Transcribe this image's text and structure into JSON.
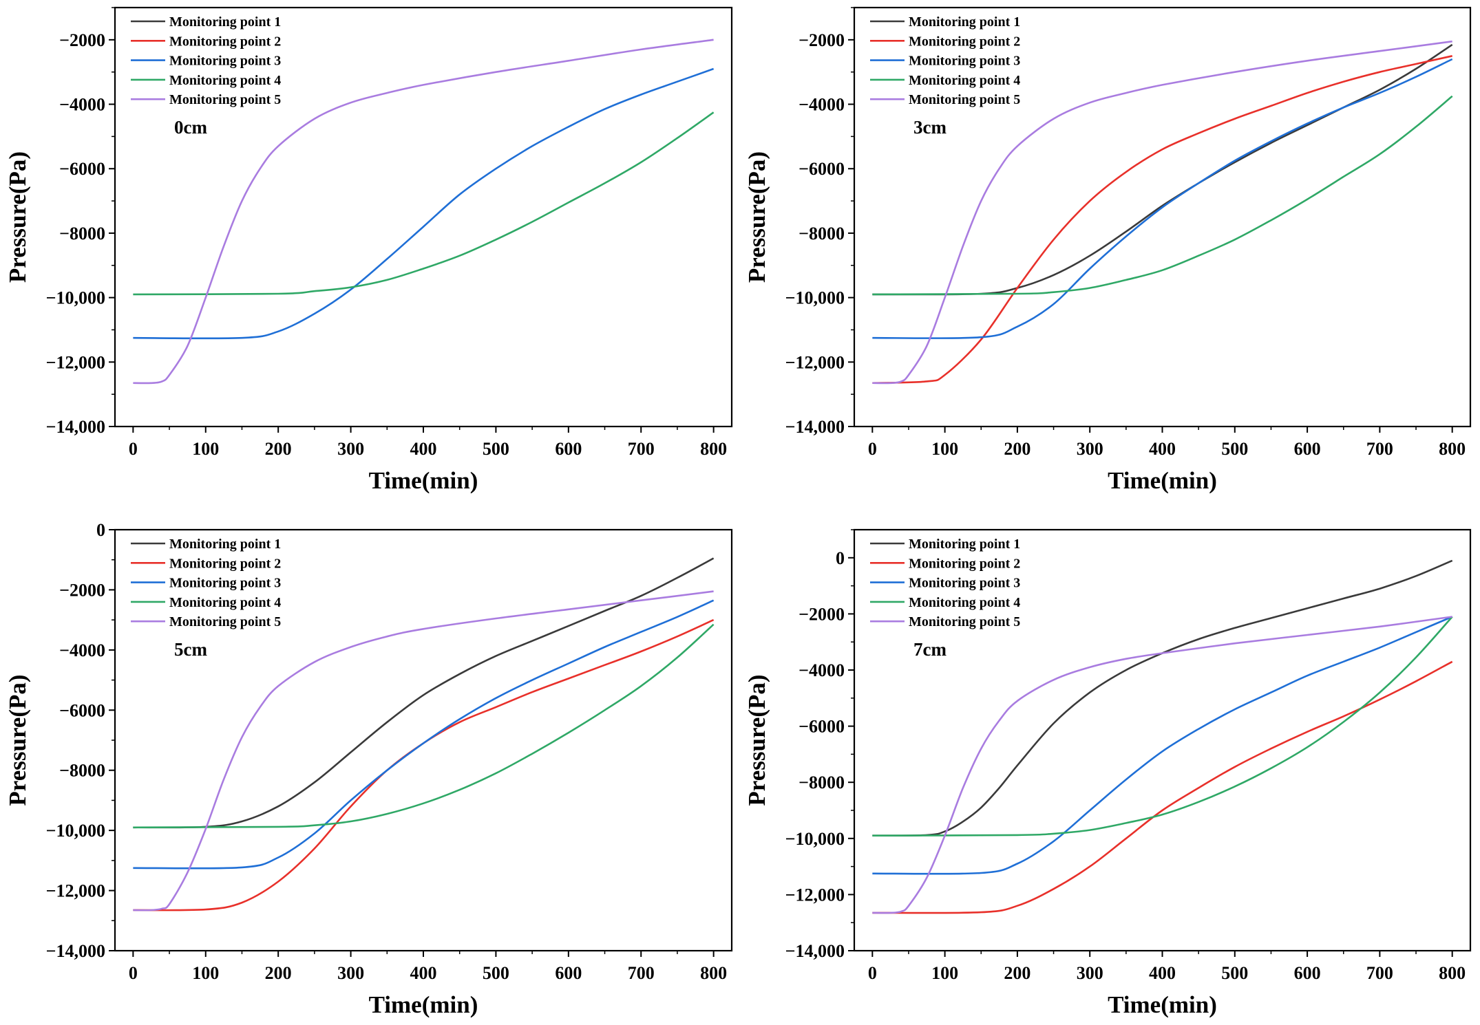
{
  "colors": {
    "Monitoring point 1": "#3a3a3a",
    "Monitoring point 2": "#e8302a",
    "Monitoring point 3": "#1f6fd6",
    "Monitoring point 4": "#2fa866",
    "Monitoring point 5": "#a97ce0"
  },
  "chart_data": [
    {
      "type": "line",
      "title": "0cm",
      "xlabel": "Time(min)",
      "ylabel": "Pressure(Pa)",
      "xlim": [
        -25,
        825
      ],
      "ylim": [
        -14000,
        -1000
      ],
      "xticks": [
        0,
        100,
        200,
        300,
        400,
        500,
        600,
        700,
        800
      ],
      "yticks": [
        -14000,
        -12000,
        -10000,
        -8000,
        -6000,
        -4000,
        -2000
      ],
      "ytick_labels": [
        "-14,000",
        "-12,000",
        "-10,000",
        "-8000",
        "-6000",
        "-4000",
        "-2000"
      ],
      "legend": "top-left",
      "series": [
        {
          "name": "Monitoring point 1",
          "x": [],
          "y": []
        },
        {
          "name": "Monitoring point 2",
          "x": [],
          "y": []
        },
        {
          "name": "Monitoring point 3",
          "x": [
            0,
            150,
            200,
            250,
            300,
            350,
            400,
            450,
            500,
            550,
            600,
            650,
            700,
            750,
            800
          ],
          "y": [
            -11250,
            -11250,
            -11050,
            -10500,
            -9750,
            -8800,
            -7800,
            -6800,
            -6000,
            -5300,
            -4700,
            -4150,
            -3700,
            -3300,
            -2900
          ]
        },
        {
          "name": "Monitoring point 4",
          "x": [
            0,
            200,
            250,
            300,
            350,
            400,
            450,
            500,
            550,
            600,
            650,
            700,
            750,
            800
          ],
          "y": [
            -9900,
            -9880,
            -9800,
            -9680,
            -9450,
            -9100,
            -8700,
            -8200,
            -7650,
            -7050,
            -6450,
            -5800,
            -5050,
            -4250
          ]
        },
        {
          "name": "Monitoring point 5",
          "x": [
            0,
            25,
            40,
            50,
            75,
            100,
            125,
            150,
            175,
            200,
            250,
            300,
            350,
            400,
            500,
            600,
            700,
            800
          ],
          "y": [
            -12650,
            -12650,
            -12600,
            -12400,
            -11500,
            -10000,
            -8400,
            -7000,
            -6000,
            -5300,
            -4450,
            -3950,
            -3650,
            -3400,
            -3000,
            -2650,
            -2300,
            -2000
          ]
        }
      ]
    },
    {
      "type": "line",
      "title": "3cm",
      "xlabel": "Time(min)",
      "ylabel": "Pressure(Pa)",
      "xlim": [
        -25,
        825
      ],
      "ylim": [
        -14000,
        -1000
      ],
      "xticks": [
        0,
        100,
        200,
        300,
        400,
        500,
        600,
        700,
        800
      ],
      "yticks": [
        -14000,
        -12000,
        -10000,
        -8000,
        -6000,
        -4000,
        -2000
      ],
      "ytick_labels": [
        "-14,000",
        "-12,000",
        "-10,000",
        "-8000",
        "-6000",
        "-4000",
        "-2000"
      ],
      "legend": "top-left",
      "series": [
        {
          "name": "Monitoring point 1",
          "x": [
            0,
            150,
            200,
            250,
            300,
            350,
            400,
            450,
            500,
            550,
            600,
            650,
            700,
            750,
            800
          ],
          "y": [
            -9900,
            -9880,
            -9700,
            -9300,
            -8700,
            -7950,
            -7150,
            -6450,
            -5800,
            -5200,
            -4650,
            -4100,
            -3550,
            -2900,
            -2150
          ]
        },
        {
          "name": "Monitoring point 2",
          "x": [
            0,
            75,
            100,
            150,
            200,
            250,
            300,
            350,
            400,
            450,
            500,
            550,
            600,
            650,
            700,
            750,
            800
          ],
          "y": [
            -12650,
            -12600,
            -12400,
            -11300,
            -9700,
            -8200,
            -7000,
            -6100,
            -5400,
            -4900,
            -4450,
            -4050,
            -3650,
            -3300,
            -3000,
            -2750,
            -2500
          ]
        },
        {
          "name": "Monitoring point 3",
          "x": [
            0,
            150,
            200,
            250,
            300,
            350,
            400,
            450,
            500,
            550,
            600,
            650,
            700,
            750,
            800
          ],
          "y": [
            -11250,
            -11230,
            -10900,
            -10200,
            -9100,
            -8100,
            -7200,
            -6450,
            -5750,
            -5150,
            -4600,
            -4100,
            -3650,
            -3150,
            -2600
          ]
        },
        {
          "name": "Monitoring point 4",
          "x": [
            0,
            200,
            250,
            300,
            350,
            400,
            450,
            500,
            550,
            600,
            650,
            700,
            750,
            800
          ],
          "y": [
            -9900,
            -9880,
            -9830,
            -9700,
            -9450,
            -9150,
            -8700,
            -8200,
            -7600,
            -6950,
            -6250,
            -5550,
            -4700,
            -3750
          ]
        },
        {
          "name": "Monitoring point 5",
          "x": [
            0,
            25,
            40,
            50,
            75,
            100,
            125,
            150,
            175,
            200,
            250,
            300,
            350,
            400,
            500,
            600,
            700,
            800
          ],
          "y": [
            -12650,
            -12650,
            -12600,
            -12400,
            -11500,
            -10000,
            -8400,
            -7000,
            -6000,
            -5300,
            -4450,
            -3950,
            -3650,
            -3400,
            -3000,
            -2650,
            -2350,
            -2050
          ]
        }
      ]
    },
    {
      "type": "line",
      "title": "5cm",
      "xlabel": "Time(min)",
      "ylabel": "Pressure(Pa)",
      "xlim": [
        -25,
        825
      ],
      "ylim": [
        -14000,
        0
      ],
      "xticks": [
        0,
        100,
        200,
        300,
        400,
        500,
        600,
        700,
        800
      ],
      "yticks": [
        -14000,
        -12000,
        -10000,
        -8000,
        -6000,
        -4000,
        -2000,
        0
      ],
      "ytick_labels": [
        "-14,000",
        "-12,000",
        "-10,000",
        "-8000",
        "-6000",
        "-4000",
        "-2000",
        "0"
      ],
      "legend": "top-left",
      "series": [
        {
          "name": "Monitoring point 1",
          "x": [
            0,
            100,
            150,
            200,
            250,
            300,
            350,
            400,
            450,
            500,
            550,
            600,
            650,
            700,
            750,
            800
          ],
          "y": [
            -9900,
            -9880,
            -9700,
            -9200,
            -8400,
            -7400,
            -6400,
            -5500,
            -4800,
            -4200,
            -3700,
            -3200,
            -2700,
            -2200,
            -1600,
            -950
          ]
        },
        {
          "name": "Monitoring point 2",
          "x": [
            0,
            100,
            150,
            200,
            250,
            300,
            350,
            400,
            450,
            500,
            550,
            600,
            650,
            700,
            750,
            800
          ],
          "y": [
            -12650,
            -12630,
            -12400,
            -11700,
            -10600,
            -9200,
            -8000,
            -7100,
            -6400,
            -5900,
            -5400,
            -4950,
            -4500,
            -4050,
            -3550,
            -3000
          ]
        },
        {
          "name": "Monitoring point 3",
          "x": [
            0,
            150,
            200,
            250,
            300,
            350,
            400,
            450,
            500,
            550,
            600,
            650,
            700,
            750,
            800
          ],
          "y": [
            -11250,
            -11230,
            -10900,
            -10100,
            -9000,
            -8000,
            -7100,
            -6300,
            -5600,
            -5000,
            -4450,
            -3900,
            -3400,
            -2900,
            -2350
          ]
        },
        {
          "name": "Monitoring point 4",
          "x": [
            0,
            200,
            250,
            300,
            350,
            400,
            450,
            500,
            550,
            600,
            650,
            700,
            750,
            800
          ],
          "y": [
            -9900,
            -9880,
            -9830,
            -9700,
            -9450,
            -9100,
            -8650,
            -8100,
            -7450,
            -6750,
            -6000,
            -5200,
            -4250,
            -3150
          ]
        },
        {
          "name": "Monitoring point 5",
          "x": [
            0,
            25,
            40,
            50,
            75,
            100,
            125,
            150,
            175,
            200,
            250,
            300,
            350,
            400,
            500,
            600,
            700,
            800
          ],
          "y": [
            -12650,
            -12650,
            -12600,
            -12450,
            -11400,
            -9950,
            -8300,
            -6900,
            -5900,
            -5200,
            -4400,
            -3900,
            -3550,
            -3300,
            -2950,
            -2650,
            -2350,
            -2050
          ]
        }
      ]
    },
    {
      "type": "line",
      "title": "7cm",
      "xlabel": "Time(min)",
      "ylabel": "Pressure(Pa)",
      "xlim": [
        -25,
        825
      ],
      "ylim": [
        -14000,
        1000
      ],
      "xticks": [
        0,
        100,
        200,
        300,
        400,
        500,
        600,
        700,
        800
      ],
      "yticks": [
        -14000,
        -12000,
        -10000,
        -8000,
        -6000,
        -4000,
        -2000,
        0
      ],
      "ytick_labels": [
        "-14,000",
        "-12,000",
        "-10,000",
        "-8000",
        "-6000",
        "-4000",
        "-2000",
        "0"
      ],
      "legend": "top-left",
      "series": [
        {
          "name": "Monitoring point 1",
          "x": [
            0,
            75,
            100,
            125,
            150,
            175,
            200,
            250,
            300,
            350,
            400,
            450,
            500,
            550,
            600,
            650,
            700,
            750,
            800
          ],
          "y": [
            -9900,
            -9880,
            -9750,
            -9400,
            -8900,
            -8200,
            -7400,
            -5900,
            -4800,
            -4000,
            -3400,
            -2900,
            -2500,
            -2150,
            -1800,
            -1450,
            -1100,
            -650,
            -100
          ]
        },
        {
          "name": "Monitoring point 2",
          "x": [
            0,
            150,
            200,
            250,
            300,
            350,
            400,
            450,
            500,
            550,
            600,
            650,
            700,
            750,
            800
          ],
          "y": [
            -12650,
            -12630,
            -12400,
            -11800,
            -11000,
            -10000,
            -9000,
            -8200,
            -7450,
            -6800,
            -6200,
            -5650,
            -5050,
            -4400,
            -3700
          ]
        },
        {
          "name": "Monitoring point 3",
          "x": [
            0,
            150,
            200,
            250,
            300,
            350,
            400,
            450,
            500,
            550,
            600,
            650,
            700,
            750,
            800
          ],
          "y": [
            -11250,
            -11230,
            -10900,
            -10100,
            -9000,
            -7900,
            -6900,
            -6100,
            -5400,
            -4800,
            -4200,
            -3700,
            -3200,
            -2650,
            -2100
          ]
        },
        {
          "name": "Monitoring point 4",
          "x": [
            0,
            200,
            250,
            300,
            350,
            400,
            450,
            500,
            550,
            600,
            650,
            700,
            750,
            800
          ],
          "y": [
            -9900,
            -9880,
            -9830,
            -9700,
            -9450,
            -9150,
            -8700,
            -8150,
            -7500,
            -6750,
            -5850,
            -4800,
            -3550,
            -2100
          ]
        },
        {
          "name": "Monitoring point 5",
          "x": [
            0,
            25,
            40,
            50,
            75,
            100,
            125,
            150,
            175,
            200,
            250,
            300,
            350,
            400,
            500,
            600,
            700,
            800
          ],
          "y": [
            -12650,
            -12650,
            -12600,
            -12400,
            -11400,
            -9900,
            -8200,
            -6800,
            -5800,
            -5100,
            -4350,
            -3900,
            -3600,
            -3400,
            -3050,
            -2750,
            -2450,
            -2100
          ]
        }
      ]
    }
  ]
}
